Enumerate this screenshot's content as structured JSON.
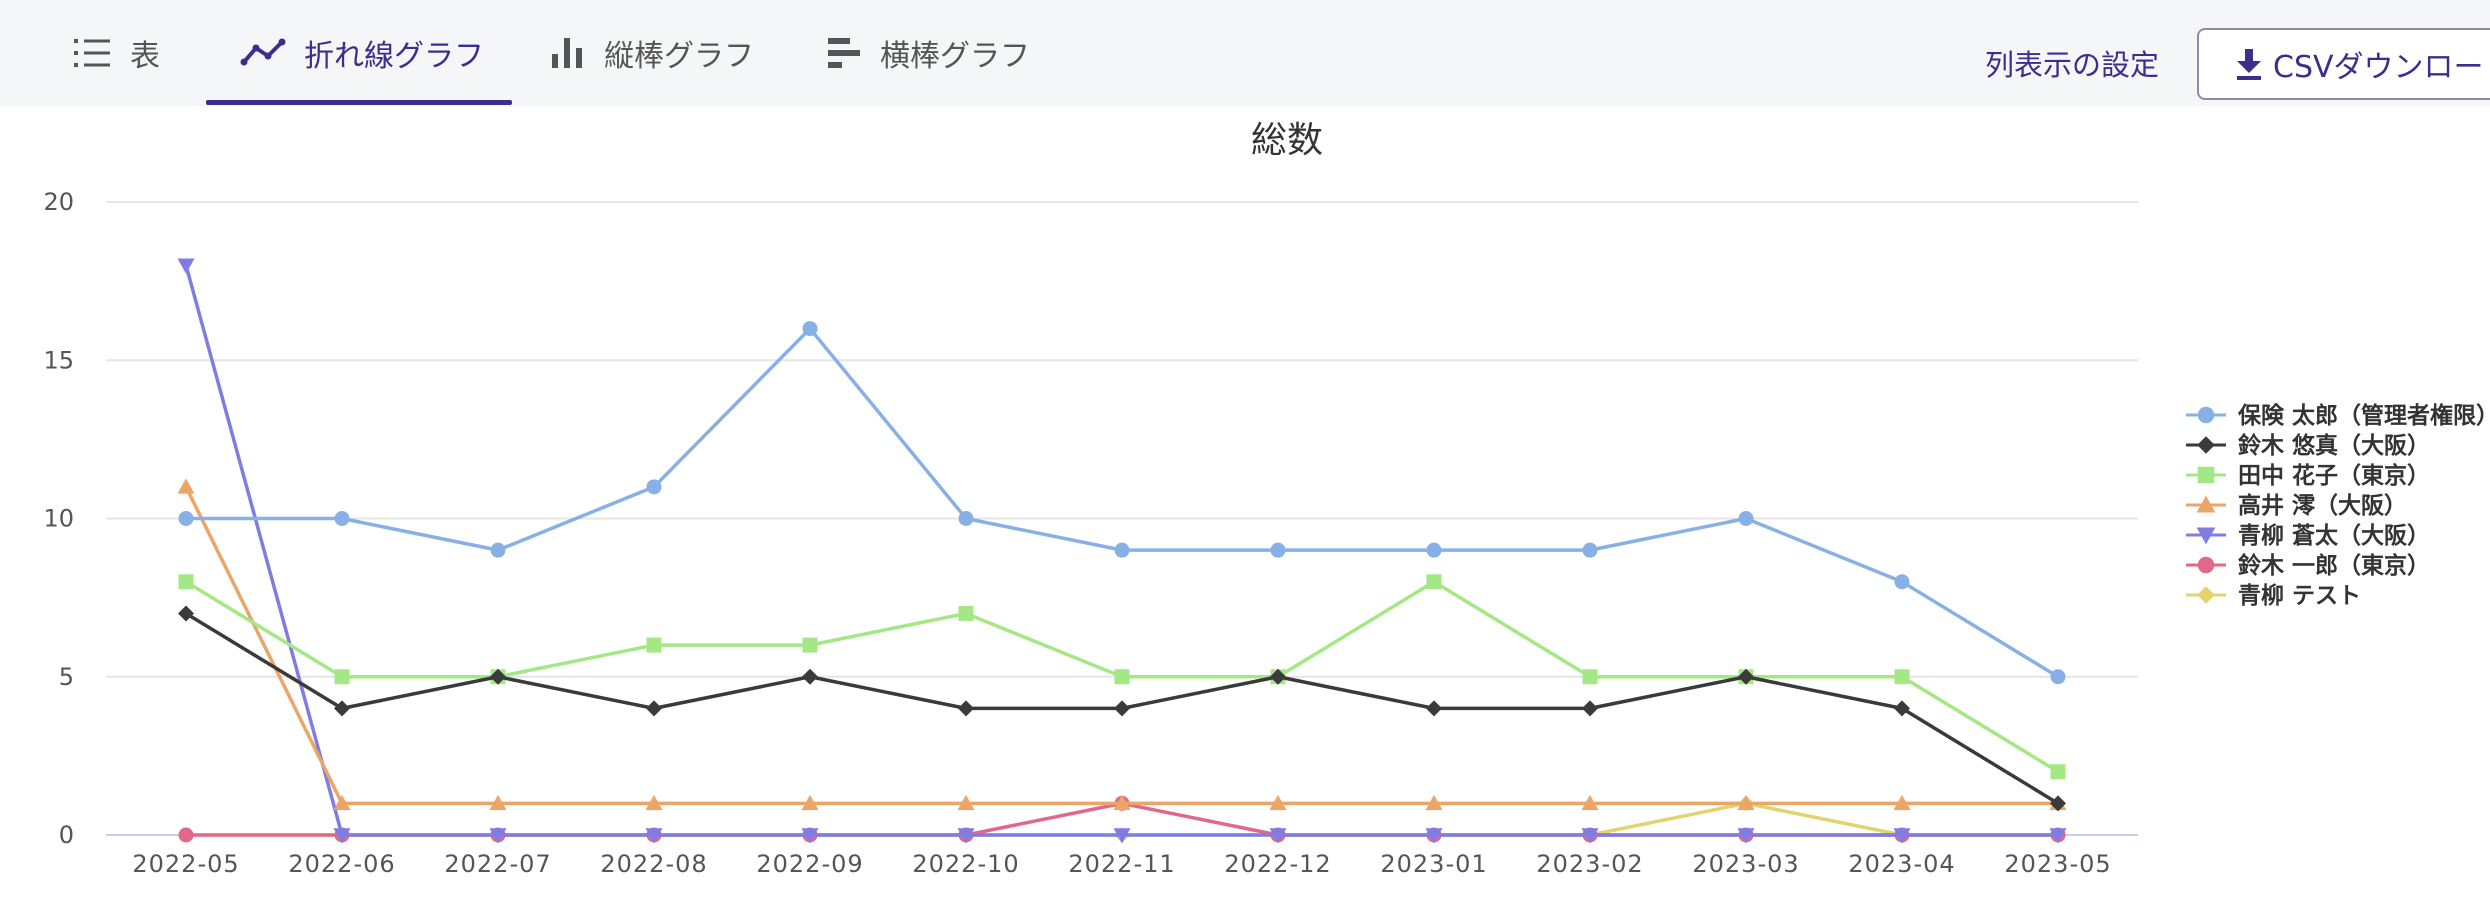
{
  "tabs": [
    {
      "label": "表",
      "icon": "list-icon",
      "active": false
    },
    {
      "label": "折れ線グラフ",
      "icon": "line-chart-icon",
      "active": true
    },
    {
      "label": "縦棒グラフ",
      "icon": "bar-chart-icon",
      "active": false
    },
    {
      "label": "横棒グラフ",
      "icon": "horizontal-bar-chart-icon",
      "active": false
    }
  ],
  "actions": {
    "column_settings": "列表示の設定",
    "csv_download": "CSVダウンロー",
    "csv_icon": "download-icon"
  },
  "colors": {
    "accent": "#3c2e8c"
  },
  "chart_data": {
    "type": "line",
    "title": "総数",
    "xlabel": "",
    "ylabel": "",
    "ylim": [
      0,
      20
    ],
    "yticks": [
      0,
      5,
      10,
      15,
      20
    ],
    "grid": true,
    "legend_position": "right",
    "x": [
      "2022-05",
      "2022-06",
      "2022-07",
      "2022-08",
      "2022-09",
      "2022-10",
      "2022-11",
      "2022-12",
      "2023-01",
      "2023-02",
      "2023-03",
      "2023-04",
      "2023-05"
    ],
    "series": [
      {
        "name": "保険 太郎（管理者権限）",
        "color": "#87b0e6",
        "marker": "circle",
        "values": [
          10,
          10,
          9,
          11,
          16,
          10,
          9,
          9,
          9,
          9,
          10,
          8,
          5
        ]
      },
      {
        "name": "鈴木 悠真（大阪）",
        "color": "#3a3a3a",
        "marker": "diamond",
        "values": [
          7,
          4,
          5,
          4,
          5,
          4,
          4,
          5,
          4,
          4,
          5,
          4,
          1
        ]
      },
      {
        "name": "田中 花子（東京）",
        "color": "#a3e885",
        "marker": "square",
        "values": [
          8,
          5,
          5,
          6,
          6,
          7,
          5,
          5,
          8,
          5,
          5,
          5,
          2
        ]
      },
      {
        "name": "高井 澪（大阪）",
        "color": "#eba567",
        "marker": "triangle",
        "values": [
          11,
          1,
          1,
          1,
          1,
          1,
          1,
          1,
          1,
          1,
          1,
          1,
          1
        ]
      },
      {
        "name": "青柳 蒼太（大阪）",
        "color": "#7f7de2",
        "marker": "triangle-down",
        "values": [
          18,
          0,
          0,
          0,
          0,
          0,
          0,
          0,
          0,
          0,
          0,
          0,
          0
        ]
      },
      {
        "name": "鈴木 一郎（東京）",
        "color": "#e2688a",
        "marker": "circle",
        "values": [
          0,
          0,
          0,
          0,
          0,
          0,
          1,
          0,
          0,
          0,
          0,
          0,
          0
        ]
      },
      {
        "name": "青柳 テスト",
        "color": "#e3d36e",
        "marker": "diamond",
        "values": [
          0,
          0,
          0,
          0,
          0,
          0,
          0,
          0,
          0,
          0,
          1,
          0,
          0
        ]
      }
    ]
  }
}
